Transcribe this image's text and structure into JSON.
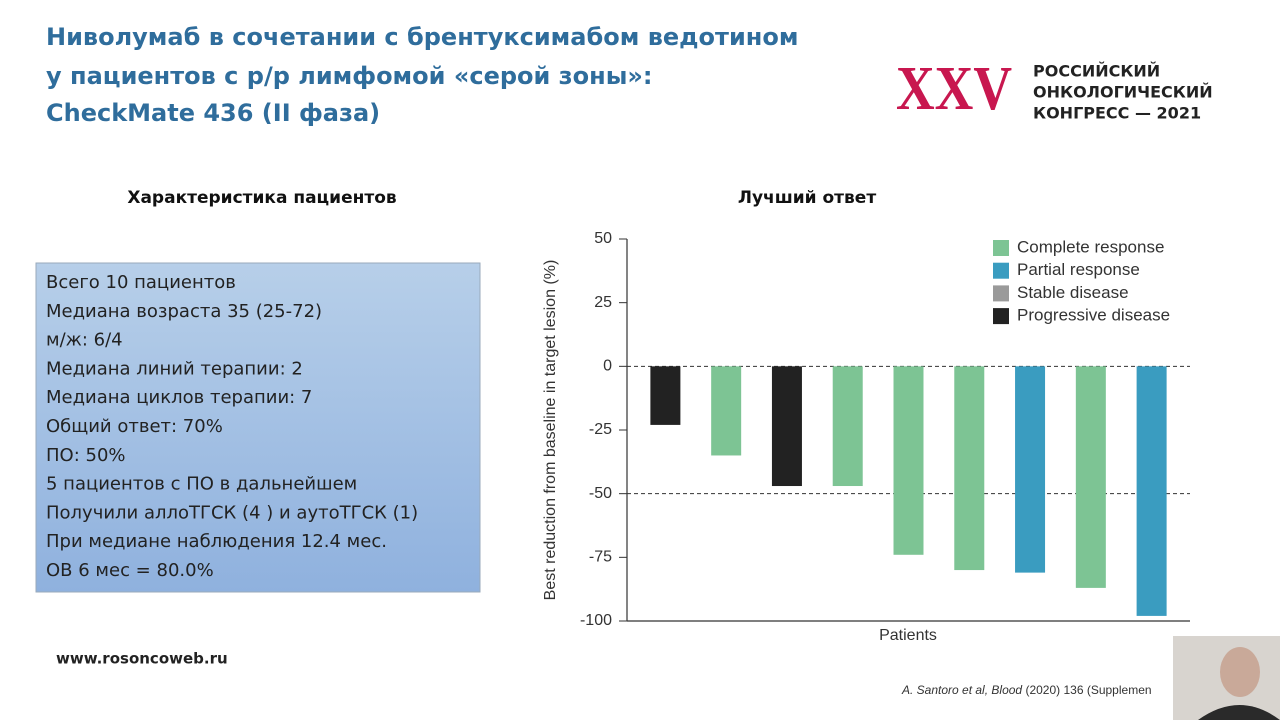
{
  "slide": {
    "title": [
      "Ниволумаб в сочетании с брентуксимабом ведотином",
      "у пациентов с р/р лимфомой «серой зоны»:",
      "CheckMate 436 (II фаза)"
    ],
    "logo": {
      "mark": "XXV",
      "lines": [
        "РОССИЙСКИЙ",
        "ОНКОЛОГИЧЕСКИЙ",
        "КОНГРЕСС — 2021"
      ]
    },
    "left_heading": "Характеристика пациентов",
    "right_heading": "Лучший ответ",
    "summary": [
      "Всего 10 пациентов",
      "Медиана возраста 35 (25-72)",
      "м/ж: 6/4",
      "Медиана линий терапии: 2",
      "Медиана циклов терапии: 7",
      "Общий ответ: 70%",
      "ПО: 50%",
      "5 пациентов с ПО в дальнейшем",
      "Получили аллоТГСК (4 ) и аутоТГСК (1)",
      "При медиане наблюдения 12.4 мес.",
      "ОВ 6 мес = 80.0%"
    ],
    "website": "www.rosoncoweb.ru",
    "citation": [
      "A. Santoro et al,",
      "Blood",
      "(2020) 136 (Supplemen"
    ]
  },
  "chart_data": {
    "type": "bar",
    "x_label": "Patients",
    "y_label": "Best reduction from baseline in target lesion (%)",
    "categories": [
      null,
      null,
      null,
      null,
      null,
      null,
      null,
      null,
      null
    ],
    "series": [
      {
        "name": "Complete response",
        "color": "#7dc494",
        "values": [
          null,
          -35,
          null,
          -47,
          -74,
          -80,
          null,
          -87,
          null
        ]
      },
      {
        "name": "Partial response",
        "color": "#3a9cc0",
        "values": [
          null,
          null,
          null,
          null,
          null,
          null,
          -81,
          null,
          -98
        ]
      },
      {
        "name": "Stable disease",
        "color": "#9a9a9a",
        "values": [
          null,
          null,
          null,
          null,
          null,
          null,
          null,
          null,
          null
        ]
      },
      {
        "name": "Progressive disease",
        "color": "#222222",
        "values": [
          -23,
          null,
          -47,
          null,
          null,
          null,
          null,
          null,
          null
        ]
      }
    ],
    "ylim": [
      -100,
      50
    ],
    "yticks": [
      -100,
      -75,
      -50,
      -25,
      0,
      25,
      50
    ],
    "reference_lines": [
      0,
      -50
    ],
    "legend": "upper right"
  }
}
